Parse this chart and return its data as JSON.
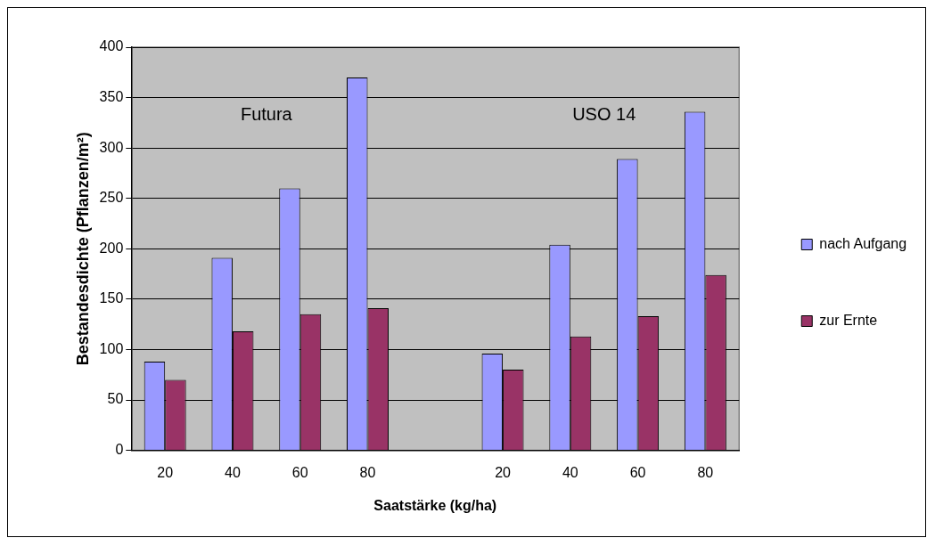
{
  "chart_data": {
    "type": "bar",
    "xlabel": "Saatstärke (kg/ha)",
    "ylabel": "Bestandesdichte (Pflanzen/m²)",
    "categories": [
      "20",
      "40",
      "60",
      "80",
      null,
      "20",
      "40",
      "60",
      "80"
    ],
    "series": [
      {
        "name": "nach Aufgang",
        "color": "#9999ff",
        "values": [
          88,
          191,
          260,
          370,
          null,
          96,
          204,
          289,
          336
        ]
      },
      {
        "name": "zur Ernte",
        "color": "#993366",
        "values": [
          70,
          118,
          135,
          141,
          null,
          80,
          113,
          133,
          174
        ]
      }
    ],
    "ylim": [
      0,
      400
    ],
    "yticks": [
      0,
      50,
      100,
      150,
      200,
      250,
      300,
      350,
      400
    ],
    "grid": "y",
    "legend": "right",
    "annotations": [
      "Futura",
      "USO 14"
    ]
  }
}
